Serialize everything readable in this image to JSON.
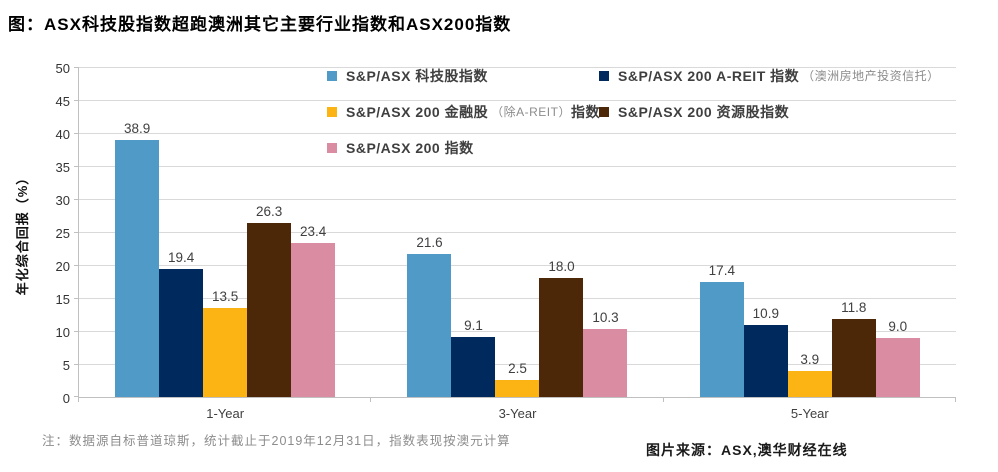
{
  "page": {
    "title": "图：ASX科技股指数超跑澳洲其它主要行业指数和ASX200指数",
    "note": "注：数据源自标普道琼斯，统计截止于2019年12月31日，指数表现按澳元计算",
    "source": "图片来源：ASX,澳华财经在线"
  },
  "colors": {
    "tech": "#4f9ac7",
    "areit": "#002a5e",
    "financials": "#fcb415",
    "resources": "#4c2708",
    "asx200": "#da8ca2",
    "gridline": "#d9d9d9",
    "axis_text": "#404040",
    "note_text": "#8c8c8c"
  },
  "legend": {
    "entries": [
      {
        "series": "tech",
        "pre": "S&P/ASX 科技股指数",
        "small": "",
        "post": ""
      },
      {
        "series": "areit",
        "pre": "S&P/ASX 200 A-REIT 指数",
        "small": "（澳洲房地产投资信托）",
        "post": ""
      },
      {
        "series": "financials",
        "pre": "S&P/ASX 200 金融股",
        "small": "（除A-REIT）",
        "post": "指数"
      },
      {
        "series": "resources",
        "pre": "S&P/ASX 200 资源股指数",
        "small": "",
        "post": ""
      },
      {
        "series": "asx200",
        "pre": "S&P/ASX 200 指数",
        "small": "",
        "post": ""
      }
    ]
  },
  "chart_data": {
    "type": "bar",
    "title": "图：ASX科技股指数超跑澳洲其它主要行业指数和ASX200指数",
    "categories": [
      "1-Year",
      "3-Year",
      "5-Year"
    ],
    "series": [
      {
        "name": "S&P/ASX 科技股指数",
        "color_key": "tech",
        "values": [
          38.9,
          21.6,
          17.4
        ]
      },
      {
        "name": "S&P/ASX 200 A-REIT 指数（澳洲房地产投资信托）",
        "color_key": "areit",
        "values": [
          19.4,
          9.1,
          10.9
        ]
      },
      {
        "name": "S&P/ASX 200 金融股（除A-REIT）指数",
        "color_key": "financials",
        "values": [
          13.5,
          2.5,
          3.9
        ]
      },
      {
        "name": "S&P/ASX 200 资源股指数",
        "color_key": "resources",
        "values": [
          26.3,
          18.0,
          11.8
        ]
      },
      {
        "name": "S&P/ASX 200 指数",
        "color_key": "asx200",
        "values": [
          23.4,
          10.3,
          9.0
        ]
      }
    ],
    "xlabel": "",
    "ylabel": "年化综合回报（%）",
    "ylim": [
      0,
      50
    ],
    "ytick_step": 5,
    "grid": true,
    "legend_position": "top-right-inside",
    "value_label_decimals": 1
  }
}
